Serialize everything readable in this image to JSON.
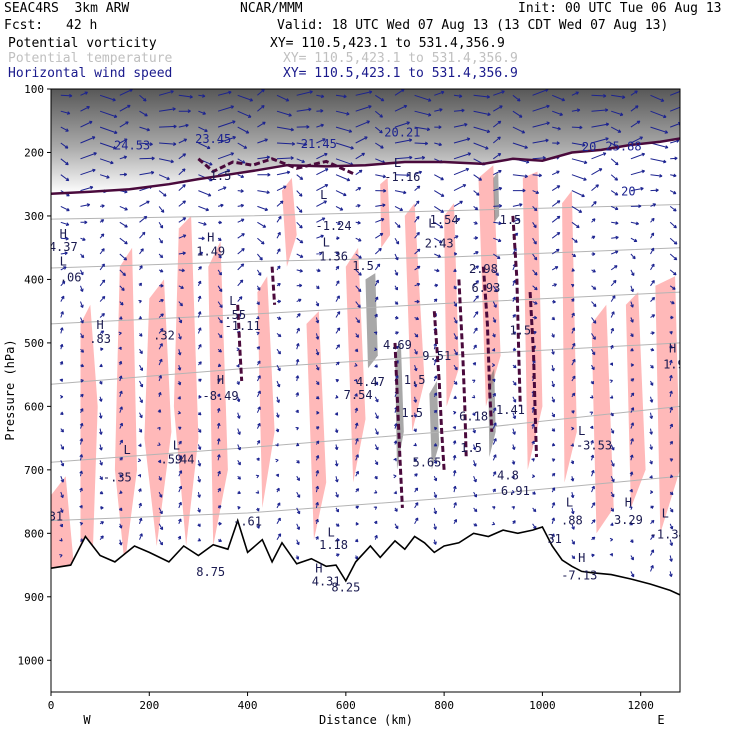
{
  "header": {
    "model": "SEAC4RS  3km ARW",
    "org": "NCAR/MMM",
    "init": "Init: 00 UTC Tue 06 Aug 13",
    "fcst_label": "Fcst:",
    "fcst_value": "42 h",
    "valid": "Valid: 18 UTC Wed 07 Aug 13 (13 CDT Wed 07 Aug 13)"
  },
  "fields": [
    {
      "name": "Potential vorticity",
      "xy": "XY= 110.5,423.1 to 531.4,356.9",
      "color": "#000000"
    },
    {
      "name": "Potential temperature",
      "xy": "XY= 110.5,423.1 to 531.4,356.9",
      "color": "#c0c0c0"
    },
    {
      "name": "Horizontal wind speed",
      "xy": "XY= 110.5,423.1 to 531.4,356.9",
      "color": "#1a1a8c"
    }
  ],
  "colors": {
    "pv_shade": "#ffb9b9",
    "pv_contour": "#4a0a3c",
    "wind": "#1c2390",
    "theta": "#b4b4b4",
    "terrain": "#000000",
    "cloud_gray": "#606060"
  },
  "chart_data": {
    "type": "cross-section",
    "xlabel": "Distance (km)",
    "ylabel": "Pressure (hPa)",
    "xlim": [
      0,
      1280
    ],
    "ylim": [
      1050,
      100
    ],
    "x_ticks": [
      0,
      200,
      400,
      600,
      800,
      1000,
      1200
    ],
    "x_tick_labels": [
      "0",
      "200",
      "400",
      "600",
      "800",
      "1000",
      "1200"
    ],
    "y_ticks": [
      100,
      200,
      300,
      400,
      500,
      600,
      700,
      800,
      900,
      1000
    ],
    "y_tick_labels": [
      "100",
      "200",
      "300",
      "400",
      "500",
      "600",
      "700",
      "800",
      "900",
      "1000"
    ],
    "end_labels": {
      "left": "W",
      "right": "E"
    },
    "terrain_surface": [
      [
        0,
        855
      ],
      [
        40,
        850
      ],
      [
        70,
        805
      ],
      [
        100,
        835
      ],
      [
        130,
        845
      ],
      [
        170,
        820
      ],
      [
        200,
        830
      ],
      [
        240,
        845
      ],
      [
        270,
        820
      ],
      [
        300,
        835
      ],
      [
        330,
        818
      ],
      [
        360,
        825
      ],
      [
        380,
        780
      ],
      [
        400,
        830
      ],
      [
        430,
        810
      ],
      [
        450,
        845
      ],
      [
        470,
        815
      ],
      [
        500,
        848
      ],
      [
        530,
        840
      ],
      [
        560,
        852
      ],
      [
        580,
        850
      ],
      [
        600,
        875
      ],
      [
        620,
        845
      ],
      [
        650,
        820
      ],
      [
        670,
        838
      ],
      [
        700,
        812
      ],
      [
        720,
        825
      ],
      [
        740,
        805
      ],
      [
        760,
        815
      ],
      [
        780,
        830
      ],
      [
        800,
        820
      ],
      [
        830,
        815
      ],
      [
        860,
        800
      ],
      [
        890,
        805
      ],
      [
        920,
        795
      ],
      [
        950,
        800
      ],
      [
        980,
        795
      ],
      [
        1000,
        790
      ],
      [
        1020,
        820
      ],
      [
        1040,
        842
      ],
      [
        1060,
        852
      ],
      [
        1080,
        860
      ],
      [
        1100,
        862
      ],
      [
        1140,
        865
      ],
      [
        1180,
        872
      ],
      [
        1220,
        880
      ],
      [
        1260,
        890
      ],
      [
        1280,
        897
      ]
    ],
    "tropopause": [
      [
        0,
        265
      ],
      [
        80,
        262
      ],
      [
        160,
        258
      ],
      [
        240,
        250
      ],
      [
        300,
        242
      ],
      [
        360,
        235
      ],
      [
        420,
        228
      ],
      [
        480,
        220
      ],
      [
        560,
        222
      ],
      [
        640,
        220
      ],
      [
        720,
        215
      ],
      [
        800,
        215
      ],
      [
        880,
        218
      ],
      [
        940,
        210
      ],
      [
        1000,
        213
      ],
      [
        1060,
        200
      ],
      [
        1120,
        196
      ],
      [
        1180,
        188
      ],
      [
        1240,
        183
      ],
      [
        1280,
        178
      ]
    ],
    "theta_lines": [
      [
        [
          0,
          305
        ],
        [
          400,
          300
        ],
        [
          800,
          292
        ],
        [
          1280,
          282
        ]
      ],
      [
        [
          0,
          382
        ],
        [
          400,
          372
        ],
        [
          800,
          365
        ],
        [
          1280,
          350
        ]
      ],
      [
        [
          0,
          470
        ],
        [
          400,
          455
        ],
        [
          800,
          438
        ],
        [
          1280,
          420
        ]
      ],
      [
        [
          0,
          565
        ],
        [
          400,
          540
        ],
        [
          800,
          520
        ],
        [
          1280,
          500
        ]
      ],
      [
        [
          0,
          688
        ],
        [
          400,
          665
        ],
        [
          800,
          640
        ],
        [
          1280,
          600
        ]
      ],
      [
        [
          0,
          780
        ],
        [
          400,
          768
        ],
        [
          800,
          745
        ],
        [
          1280,
          710
        ]
      ]
    ],
    "pv_contours": [
      [
        [
          700,
          500
        ],
        [
          705,
          590
        ],
        [
          710,
          680
        ],
        [
          715,
          760
        ]
      ],
      [
        [
          780,
          450
        ],
        [
          790,
          560
        ],
        [
          795,
          640
        ],
        [
          800,
          700
        ]
      ],
      [
        [
          830,
          400
        ],
        [
          838,
          520
        ],
        [
          842,
          600
        ],
        [
          845,
          680
        ]
      ],
      [
        [
          880,
          380
        ],
        [
          888,
          470
        ],
        [
          893,
          580
        ],
        [
          897,
          640
        ]
      ],
      [
        [
          940,
          300
        ],
        [
          948,
          400
        ],
        [
          952,
          520
        ],
        [
          955,
          600
        ]
      ],
      [
        [
          975,
          420
        ],
        [
          982,
          520
        ],
        [
          985,
          600
        ],
        [
          988,
          680
        ]
      ],
      [
        [
          380,
          440
        ],
        [
          385,
          520
        ],
        [
          388,
          560
        ]
      ],
      [
        [
          450,
          380
        ],
        [
          455,
          440
        ]
      ],
      [
        [
          300,
          210
        ],
        [
          330,
          230
        ],
        [
          370,
          215
        ],
        [
          410,
          220
        ],
        [
          450,
          210
        ],
        [
          500,
          225
        ],
        [
          560,
          214
        ],
        [
          620,
          235
        ]
      ]
    ],
    "pv_shaded": [
      [
        [
          0,
          740
        ],
        [
          30,
          710
        ],
        [
          50,
          880
        ],
        [
          0,
          880
        ]
      ],
      [
        [
          60,
          470
        ],
        [
          80,
          440
        ],
        [
          95,
          600
        ],
        [
          85,
          830
        ],
        [
          60,
          830
        ]
      ],
      [
        [
          140,
          380
        ],
        [
          165,
          350
        ],
        [
          175,
          700
        ],
        [
          150,
          850
        ],
        [
          130,
          700
        ]
      ],
      [
        [
          200,
          430
        ],
        [
          230,
          400
        ],
        [
          245,
          640
        ],
        [
          215,
          820
        ],
        [
          190,
          650
        ]
      ],
      [
        [
          260,
          320
        ],
        [
          285,
          300
        ],
        [
          300,
          650
        ],
        [
          275,
          820
        ],
        [
          250,
          600
        ]
      ],
      [
        [
          320,
          380
        ],
        [
          345,
          340
        ],
        [
          360,
          700
        ],
        [
          330,
          820
        ]
      ],
      [
        [
          420,
          420
        ],
        [
          440,
          395
        ],
        [
          455,
          640
        ],
        [
          430,
          760
        ]
      ],
      [
        [
          470,
          260
        ],
        [
          490,
          240
        ],
        [
          500,
          330
        ],
        [
          480,
          380
        ]
      ],
      [
        [
          520,
          470
        ],
        [
          545,
          450
        ],
        [
          560,
          720
        ],
        [
          535,
          810
        ]
      ],
      [
        [
          600,
          380
        ],
        [
          625,
          350
        ],
        [
          640,
          620
        ],
        [
          615,
          720
        ]
      ],
      [
        [
          670,
          250
        ],
        [
          685,
          240
        ],
        [
          690,
          330
        ],
        [
          672,
          350
        ]
      ],
      [
        [
          720,
          300
        ],
        [
          740,
          280
        ],
        [
          760,
          560
        ],
        [
          735,
          640
        ]
      ],
      [
        [
          800,
          300
        ],
        [
          820,
          280
        ],
        [
          830,
          540
        ],
        [
          805,
          600
        ]
      ],
      [
        [
          870,
          240
        ],
        [
          900,
          220
        ],
        [
          915,
          520
        ],
        [
          885,
          600
        ]
      ],
      [
        [
          960,
          240
        ],
        [
          990,
          230
        ],
        [
          1000,
          600
        ],
        [
          970,
          700
        ]
      ],
      [
        [
          1040,
          280
        ],
        [
          1060,
          260
        ],
        [
          1070,
          640
        ],
        [
          1045,
          720
        ]
      ],
      [
        [
          1100,
          470
        ],
        [
          1130,
          440
        ],
        [
          1145,
          760
        ],
        [
          1110,
          800
        ]
      ],
      [
        [
          1170,
          440
        ],
        [
          1195,
          420
        ],
        [
          1210,
          700
        ],
        [
          1180,
          760
        ]
      ],
      [
        [
          1230,
          410
        ],
        [
          1270,
          395
        ],
        [
          1280,
          700
        ],
        [
          1240,
          800
        ]
      ]
    ],
    "cloud_shaded": [
      [
        [
          640,
          400
        ],
        [
          660,
          390
        ],
        [
          665,
          520
        ],
        [
          645,
          540
        ]
      ],
      [
        [
          700,
          520
        ],
        [
          712,
          500
        ],
        [
          718,
          640
        ],
        [
          704,
          700
        ]
      ],
      [
        [
          770,
          580
        ],
        [
          785,
          560
        ],
        [
          790,
          660
        ],
        [
          775,
          700
        ]
      ],
      [
        [
          890,
          560
        ],
        [
          902,
          540
        ],
        [
          905,
          640
        ],
        [
          892,
          680
        ]
      ],
      [
        [
          900,
          240
        ],
        [
          910,
          230
        ],
        [
          912,
          300
        ],
        [
          902,
          310
        ]
      ]
    ],
    "wind_speed_labels": [
      {
        "x": 165,
        "p": 195,
        "text": "24.53"
      },
      {
        "x": 330,
        "p": 185,
        "text": "23.45"
      },
      {
        "x": 545,
        "p": 193,
        "text": "21.45"
      },
      {
        "x": 715,
        "p": 175,
        "text": "20.21"
      },
      {
        "x": 1095,
        "p": 198,
        "text": "20"
      },
      {
        "x": 1165,
        "p": 197,
        "text": "25.88"
      },
      {
        "x": 1175,
        "p": 268,
        "text": "20"
      }
    ],
    "annotations": [
      {
        "x": 25,
        "p": 335,
        "text": "H"
      },
      {
        "x": 25,
        "p": 355,
        "text": "4.37"
      },
      {
        "x": 25,
        "p": 378,
        "text": "L"
      },
      {
        "x": 40,
        "p": 403,
        "text": ".06"
      },
      {
        "x": 100,
        "p": 478,
        "text": "H"
      },
      {
        "x": 100,
        "p": 500,
        "text": ".83"
      },
      {
        "x": 230,
        "p": 495,
        "text": ".32"
      },
      {
        "x": 325,
        "p": 340,
        "text": "H"
      },
      {
        "x": 325,
        "p": 362,
        "text": "1.49"
      },
      {
        "x": 370,
        "p": 440,
        "text": "L"
      },
      {
        "x": 375,
        "p": 462,
        "text": ".55"
      },
      {
        "x": 390,
        "p": 480,
        "text": "-1.11"
      },
      {
        "x": 345,
        "p": 565,
        "text": "H"
      },
      {
        "x": 345,
        "p": 590,
        "text": "-8.49"
      },
      {
        "x": 555,
        "p": 273,
        "text": "L"
      },
      {
        "x": 575,
        "p": 322,
        "text": "-1.24"
      },
      {
        "x": 560,
        "p": 348,
        "text": "L"
      },
      {
        "x": 575,
        "p": 370,
        "text": "1.36"
      },
      {
        "x": 635,
        "p": 385,
        "text": "1.5"
      },
      {
        "x": 705,
        "p": 510,
        "text": "4.69"
      },
      {
        "x": 705,
        "p": 223,
        "text": "L"
      },
      {
        "x": 715,
        "p": 245,
        "text": "-1.16"
      },
      {
        "x": 775,
        "p": 318,
        "text": "L"
      },
      {
        "x": 800,
        "p": 313,
        "text": "1.54"
      },
      {
        "x": 790,
        "p": 350,
        "text": "2.43"
      },
      {
        "x": 880,
        "p": 390,
        "text": "2.98"
      },
      {
        "x": 885,
        "p": 420,
        "text": "6.93"
      },
      {
        "x": 935,
        "p": 313,
        "text": "1.5"
      },
      {
        "x": 955,
        "p": 487,
        "text": "1.5"
      },
      {
        "x": 785,
        "p": 527,
        "text": "9.51"
      },
      {
        "x": 650,
        "p": 568,
        "text": "4.47"
      },
      {
        "x": 625,
        "p": 588,
        "text": "7.54"
      },
      {
        "x": 740,
        "p": 565,
        "text": "1.5"
      },
      {
        "x": 735,
        "p": 617,
        "text": "1.5"
      },
      {
        "x": 860,
        "p": 622,
        "text": "6.18"
      },
      {
        "x": 935,
        "p": 612,
        "text": "1.41"
      },
      {
        "x": 855,
        "p": 672,
        "text": "1.5"
      },
      {
        "x": 765,
        "p": 695,
        "text": "5.65"
      },
      {
        "x": 930,
        "p": 715,
        "text": "4.8"
      },
      {
        "x": 945,
        "p": 740,
        "text": "6.91"
      },
      {
        "x": 1080,
        "p": 645,
        "text": "L"
      },
      {
        "x": 1105,
        "p": 668,
        "text": "-3.53"
      },
      {
        "x": 1265,
        "p": 515,
        "text": "H"
      },
      {
        "x": 1275,
        "p": 540,
        "text": "1.94"
      },
      {
        "x": 255,
        "p": 668,
        "text": "L"
      },
      {
        "x": 270,
        "p": 690,
        "text": ".44"
      },
      {
        "x": 245,
        "p": 690,
        "text": ".59"
      },
      {
        "x": 155,
        "p": 675,
        "text": "L"
      },
      {
        "x": 135,
        "p": 718,
        "text": "-.35"
      },
      {
        "x": 1055,
        "p": 758,
        "text": "L"
      },
      {
        "x": 1060,
        "p": 786,
        "text": ".88"
      },
      {
        "x": 1175,
        "p": 758,
        "text": "H"
      },
      {
        "x": 1175,
        "p": 785,
        "text": "3.29"
      },
      {
        "x": 1255,
        "p": 808,
        "text": "-1.34"
      },
      {
        "x": 1080,
        "p": 845,
        "text": "H"
      },
      {
        "x": 1075,
        "p": 873,
        "text": "-7.13"
      },
      {
        "x": 1250,
        "p": 775,
        "text": "L"
      },
      {
        "x": 570,
        "p": 805,
        "text": "L"
      },
      {
        "x": 575,
        "p": 825,
        "text": "1.18"
      },
      {
        "x": 545,
        "p": 862,
        "text": "H"
      },
      {
        "x": 560,
        "p": 882,
        "text": "4.31"
      },
      {
        "x": 600,
        "p": 892,
        "text": "8.25"
      },
      {
        "x": 325,
        "p": 867,
        "text": "8.75"
      },
      {
        "x": 10,
        "p": 780,
        "text": "31"
      },
      {
        "x": 1025,
        "p": 815,
        "text": "31"
      },
      {
        "x": 345,
        "p": 243,
        "text": "1.5"
      },
      {
        "x": 400,
        "p": 788,
        "text": "-.61"
      }
    ],
    "wind_grid": {
      "u_profile": [
        [
          100,
          18
        ],
        [
          200,
          20
        ],
        [
          300,
          10
        ],
        [
          400,
          6
        ],
        [
          500,
          4
        ],
        [
          600,
          3
        ],
        [
          700,
          3
        ],
        [
          800,
          4
        ],
        [
          900,
          3
        ]
      ],
      "x_step_km": 40,
      "p_step_hpa": 25
    }
  }
}
